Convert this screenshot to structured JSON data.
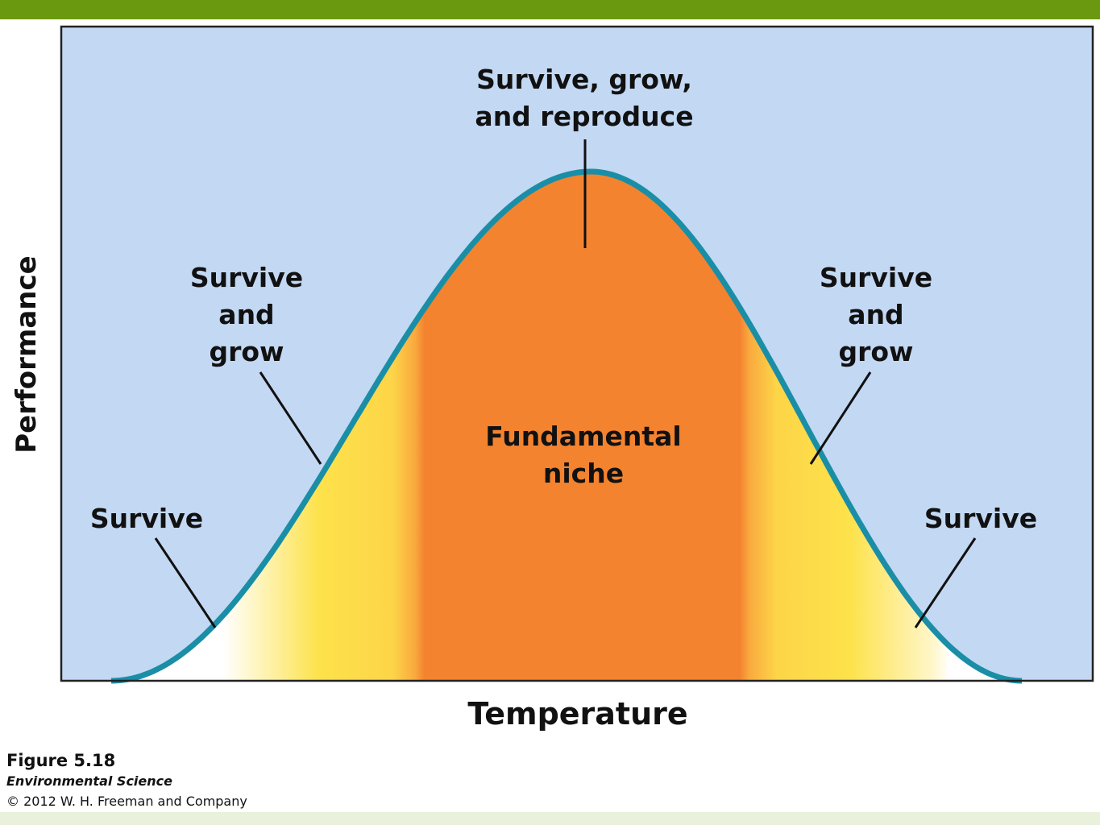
{
  "colors": {
    "header_bar": "#6a980e",
    "footer_bar": "#e9f0dc",
    "background": "#c3d8f3",
    "curve": "#1a8ea6",
    "niche_orange": "#f4832f",
    "grow_yellow": "#fde24b"
  },
  "diagram": {
    "y_axis_label": "Performance",
    "x_axis_label": "Temperature",
    "labels": {
      "peak": [
        "Survive, grow,",
        "and reproduce"
      ],
      "left_grow": [
        "Survive",
        "and",
        "grow"
      ],
      "right_grow": [
        "Survive",
        "and",
        "grow"
      ],
      "left_survive": "Survive",
      "right_survive": "Survive",
      "center": [
        "Fundamental",
        "niche"
      ]
    }
  },
  "caption": {
    "figure": "Figure 5.18",
    "book": "Environmental Science",
    "copyright": "© 2012 W. H. Freeman and Company"
  }
}
